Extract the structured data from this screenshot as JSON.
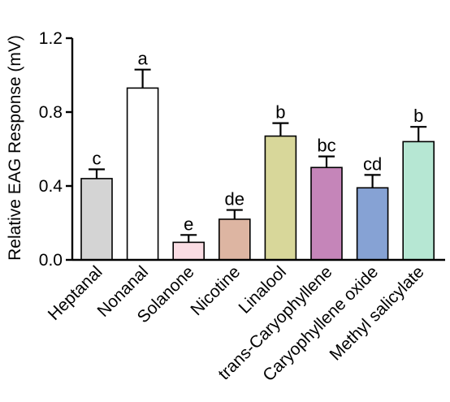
{
  "chart_data": {
    "type": "bar",
    "ylabel": "Relative EAG Response (mV)",
    "xlabel": "",
    "ylim": [
      0,
      1.2
    ],
    "yticks": [
      0.0,
      0.4,
      0.8,
      1.2
    ],
    "ytick_labels": [
      "0.0",
      "0.4",
      "0.8",
      "1.2"
    ],
    "categories": [
      "Heptanal",
      "Nonanal",
      "Solanone",
      "Nicotine",
      "Linalool",
      "trans-Caryophyllene",
      "Caryophyllene oxide",
      "Methyl salicylate"
    ],
    "values": [
      0.44,
      0.93,
      0.095,
      0.22,
      0.67,
      0.5,
      0.39,
      0.64
    ],
    "errors": [
      0.05,
      0.1,
      0.04,
      0.05,
      0.07,
      0.06,
      0.07,
      0.08
    ],
    "significance": [
      "c",
      "a",
      "e",
      "de",
      "b",
      "bc",
      "cd",
      "b"
    ],
    "colors": [
      "#d4d4d4",
      "#ffffff",
      "#fadce3",
      "#ddb5a2",
      "#d8d79a",
      "#c585b9",
      "#86a2d4",
      "#b6e7d3"
    ],
    "grid": false,
    "legend": "none"
  }
}
